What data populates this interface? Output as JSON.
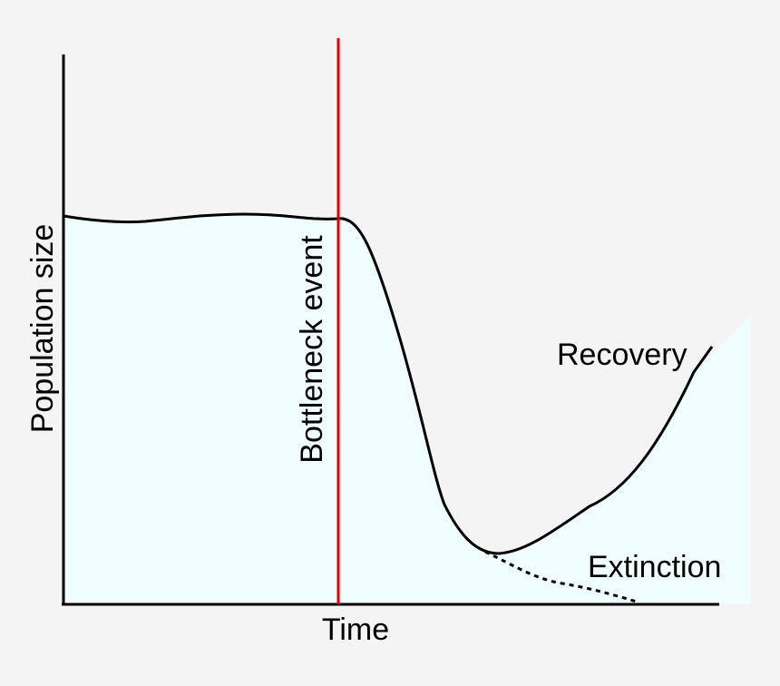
{
  "diagram": {
    "y_axis_label": "Population size",
    "x_axis_label": "Time",
    "event_label": "Bottleneck event",
    "recovery_label": "Recovery",
    "extinction_label": "Extinction"
  },
  "colors": {
    "background": "#f4f4f4",
    "fill": "#f0fdfd",
    "curve": "#000000",
    "event_line": "#e00000"
  }
}
